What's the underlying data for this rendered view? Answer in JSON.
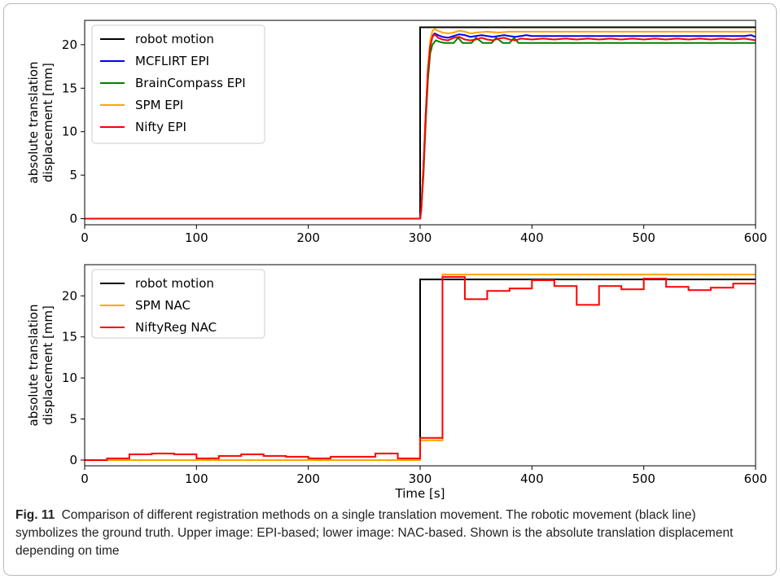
{
  "caption": {
    "label": "Fig. 11",
    "text": "Comparison of different registration methods on a single translation movement. The robotic movement (black line) symbolizes the ground truth. Upper image: EPI-based; lower image: NAC-based. Shown is the absolute translation displacement depending on time"
  },
  "chart_data": [
    {
      "type": "line",
      "ylabel": "absolute translation\ndisplacement [mm]",
      "xlabel": "",
      "xlim": [
        0,
        600
      ],
      "ylim": [
        -0.7,
        22.8
      ],
      "xticks": [
        0,
        100,
        200,
        300,
        400,
        500,
        600
      ],
      "yticks": [
        0,
        5,
        10,
        15,
        20
      ],
      "grid": false,
      "legend_position": "top-left",
      "series": [
        {
          "name": "robot motion",
          "color": "#000000",
          "points": [
            [
              0,
              0
            ],
            [
              300,
              0
            ],
            [
              300,
              22
            ],
            [
              600,
              22
            ]
          ]
        },
        {
          "name": "MCFLIRT EPI",
          "color": "#0000ff",
          "points": [
            [
              0,
              0
            ],
            [
              300,
              0
            ],
            [
              301,
              1
            ],
            [
              303,
              6
            ],
            [
              305,
              12
            ],
            [
              307,
              17
            ],
            [
              309,
              19.8
            ],
            [
              311,
              21.0
            ],
            [
              313,
              21.3
            ],
            [
              316,
              21.1
            ],
            [
              320,
              20.9
            ],
            [
              325,
              20.8
            ],
            [
              330,
              21.0
            ],
            [
              335,
              21.2
            ],
            [
              340,
              21.1
            ],
            [
              345,
              20.9
            ],
            [
              350,
              21.0
            ],
            [
              355,
              21.1
            ],
            [
              360,
              21.0
            ],
            [
              365,
              20.9
            ],
            [
              370,
              21.0
            ],
            [
              375,
              21.1
            ],
            [
              380,
              21.0
            ],
            [
              385,
              20.9
            ],
            [
              390,
              21.0
            ],
            [
              395,
              21.1
            ],
            [
              400,
              21.0
            ],
            [
              420,
              21.0
            ],
            [
              440,
              21.0
            ],
            [
              460,
              21.0
            ],
            [
              480,
              21.0
            ],
            [
              500,
              21.0
            ],
            [
              520,
              21.0
            ],
            [
              540,
              21.0
            ],
            [
              560,
              21.0
            ],
            [
              580,
              21.0
            ],
            [
              590,
              21.0
            ],
            [
              596,
              21.1
            ],
            [
              600,
              20.9
            ]
          ]
        },
        {
          "name": "BrainCompass EPI",
          "color": "#008000",
          "points": [
            [
              0,
              0
            ],
            [
              300,
              0
            ],
            [
              301,
              1
            ],
            [
              303,
              5
            ],
            [
              305,
              11
            ],
            [
              307,
              16
            ],
            [
              309,
              19.0
            ],
            [
              311,
              20.0
            ],
            [
              314,
              20.5
            ],
            [
              318,
              20.3
            ],
            [
              322,
              20.2
            ],
            [
              330,
              20.2
            ],
            [
              334,
              20.8
            ],
            [
              338,
              20.2
            ],
            [
              346,
              20.2
            ],
            [
              350,
              20.8
            ],
            [
              356,
              20.2
            ],
            [
              364,
              20.2
            ],
            [
              368,
              20.8
            ],
            [
              374,
              20.2
            ],
            [
              380,
              20.2
            ],
            [
              384,
              20.8
            ],
            [
              388,
              20.2
            ],
            [
              400,
              20.2
            ],
            [
              450,
              20.2
            ],
            [
              500,
              20.2
            ],
            [
              550,
              20.2
            ],
            [
              600,
              20.2
            ]
          ]
        },
        {
          "name": "SPM EPI",
          "color": "#ffa500",
          "points": [
            [
              0,
              0
            ],
            [
              300,
              0
            ],
            [
              301,
              1
            ],
            [
              303,
              6
            ],
            [
              305,
              12
            ],
            [
              307,
              17.5
            ],
            [
              309,
              20.5
            ],
            [
              311,
              21.6
            ],
            [
              313,
              21.8
            ],
            [
              316,
              21.6
            ],
            [
              320,
              21.4
            ],
            [
              325,
              21.3
            ],
            [
              330,
              21.4
            ],
            [
              335,
              21.6
            ],
            [
              340,
              21.5
            ],
            [
              345,
              21.3
            ],
            [
              350,
              21.4
            ],
            [
              360,
              21.5
            ],
            [
              370,
              21.4
            ],
            [
              380,
              21.5
            ],
            [
              390,
              21.5
            ],
            [
              400,
              21.5
            ],
            [
              450,
              21.5
            ],
            [
              500,
              21.5
            ],
            [
              550,
              21.5
            ],
            [
              600,
              21.5
            ]
          ]
        },
        {
          "name": "Nifty EPI",
          "color": "#ff0000",
          "points": [
            [
              0,
              0
            ],
            [
              300,
              0
            ],
            [
              301,
              1
            ],
            [
              303,
              6
            ],
            [
              305,
              12
            ],
            [
              307,
              17
            ],
            [
              309,
              19.8
            ],
            [
              311,
              20.9
            ],
            [
              313,
              21.2
            ],
            [
              316,
              20.8
            ],
            [
              320,
              20.6
            ],
            [
              325,
              20.5
            ],
            [
              330,
              20.8
            ],
            [
              335,
              20.9
            ],
            [
              340,
              20.6
            ],
            [
              345,
              20.5
            ],
            [
              350,
              20.6
            ],
            [
              355,
              20.8
            ],
            [
              360,
              20.6
            ],
            [
              365,
              20.5
            ],
            [
              370,
              20.7
            ],
            [
              375,
              20.8
            ],
            [
              380,
              20.6
            ],
            [
              385,
              20.5
            ],
            [
              390,
              20.7
            ],
            [
              400,
              20.6
            ],
            [
              410,
              20.7
            ],
            [
              420,
              20.6
            ],
            [
              430,
              20.7
            ],
            [
              440,
              20.6
            ],
            [
              450,
              20.7
            ],
            [
              460,
              20.6
            ],
            [
              470,
              20.7
            ],
            [
              480,
              20.6
            ],
            [
              490,
              20.7
            ],
            [
              500,
              20.6
            ],
            [
              510,
              20.7
            ],
            [
              520,
              20.6
            ],
            [
              530,
              20.7
            ],
            [
              540,
              20.6
            ],
            [
              550,
              20.7
            ],
            [
              560,
              20.6
            ],
            [
              570,
              20.7
            ],
            [
              580,
              20.6
            ],
            [
              590,
              20.7
            ],
            [
              600,
              20.5
            ]
          ]
        }
      ]
    },
    {
      "type": "line",
      "ylabel": "absolute translation\ndisplacement [mm]",
      "xlabel": "Time [s]",
      "xlim": [
        0,
        600
      ],
      "ylim": [
        -0.7,
        23.8
      ],
      "xticks": [
        0,
        100,
        200,
        300,
        400,
        500,
        600
      ],
      "yticks": [
        0,
        5,
        10,
        15,
        20
      ],
      "grid": false,
      "legend_position": "top-left",
      "series": [
        {
          "name": "robot motion",
          "color": "#000000",
          "points": [
            [
              0,
              0
            ],
            [
              300,
              0
            ],
            [
              300,
              22
            ],
            [
              600,
              22
            ]
          ]
        },
        {
          "name": "SPM NAC",
          "color": "#ffa500",
          "points": [
            [
              0,
              0
            ],
            [
              300,
              0
            ],
            [
              300,
              2.4
            ],
            [
              320,
              2.4
            ],
            [
              320,
              22.6
            ],
            [
              600,
              22.6
            ]
          ]
        },
        {
          "name": "NiftyReg NAC",
          "color": "#ff0000",
          "points": [
            [
              0,
              0
            ],
            [
              20,
              0
            ],
            [
              20,
              0.2
            ],
            [
              40,
              0.2
            ],
            [
              40,
              0.7
            ],
            [
              60,
              0.7
            ],
            [
              60,
              0.8
            ],
            [
              80,
              0.8
            ],
            [
              80,
              0.7
            ],
            [
              100,
              0.7
            ],
            [
              100,
              0.2
            ],
            [
              120,
              0.2
            ],
            [
              120,
              0.5
            ],
            [
              140,
              0.5
            ],
            [
              140,
              0.7
            ],
            [
              160,
              0.7
            ],
            [
              160,
              0.5
            ],
            [
              180,
              0.5
            ],
            [
              180,
              0.4
            ],
            [
              200,
              0.4
            ],
            [
              200,
              0.2
            ],
            [
              220,
              0.2
            ],
            [
              220,
              0.4
            ],
            [
              260,
              0.4
            ],
            [
              260,
              0.8
            ],
            [
              280,
              0.8
            ],
            [
              280,
              0.2
            ],
            [
              300,
              0.2
            ],
            [
              300,
              2.7
            ],
            [
              320,
              2.7
            ],
            [
              320,
              22.3
            ],
            [
              340,
              22.3
            ],
            [
              340,
              19.6
            ],
            [
              360,
              19.6
            ],
            [
              360,
              20.6
            ],
            [
              380,
              20.6
            ],
            [
              380,
              20.9
            ],
            [
              400,
              20.9
            ],
            [
              400,
              21.9
            ],
            [
              420,
              21.9
            ],
            [
              420,
              21.2
            ],
            [
              440,
              21.2
            ],
            [
              440,
              18.9
            ],
            [
              460,
              18.9
            ],
            [
              460,
              21.2
            ],
            [
              480,
              21.2
            ],
            [
              480,
              20.8
            ],
            [
              500,
              20.8
            ],
            [
              500,
              22.1
            ],
            [
              520,
              22.1
            ],
            [
              520,
              21.1
            ],
            [
              540,
              21.1
            ],
            [
              540,
              20.7
            ],
            [
              560,
              20.7
            ],
            [
              560,
              21.0
            ],
            [
              580,
              21.0
            ],
            [
              580,
              21.5
            ],
            [
              600,
              21.5
            ]
          ]
        }
      ]
    }
  ]
}
